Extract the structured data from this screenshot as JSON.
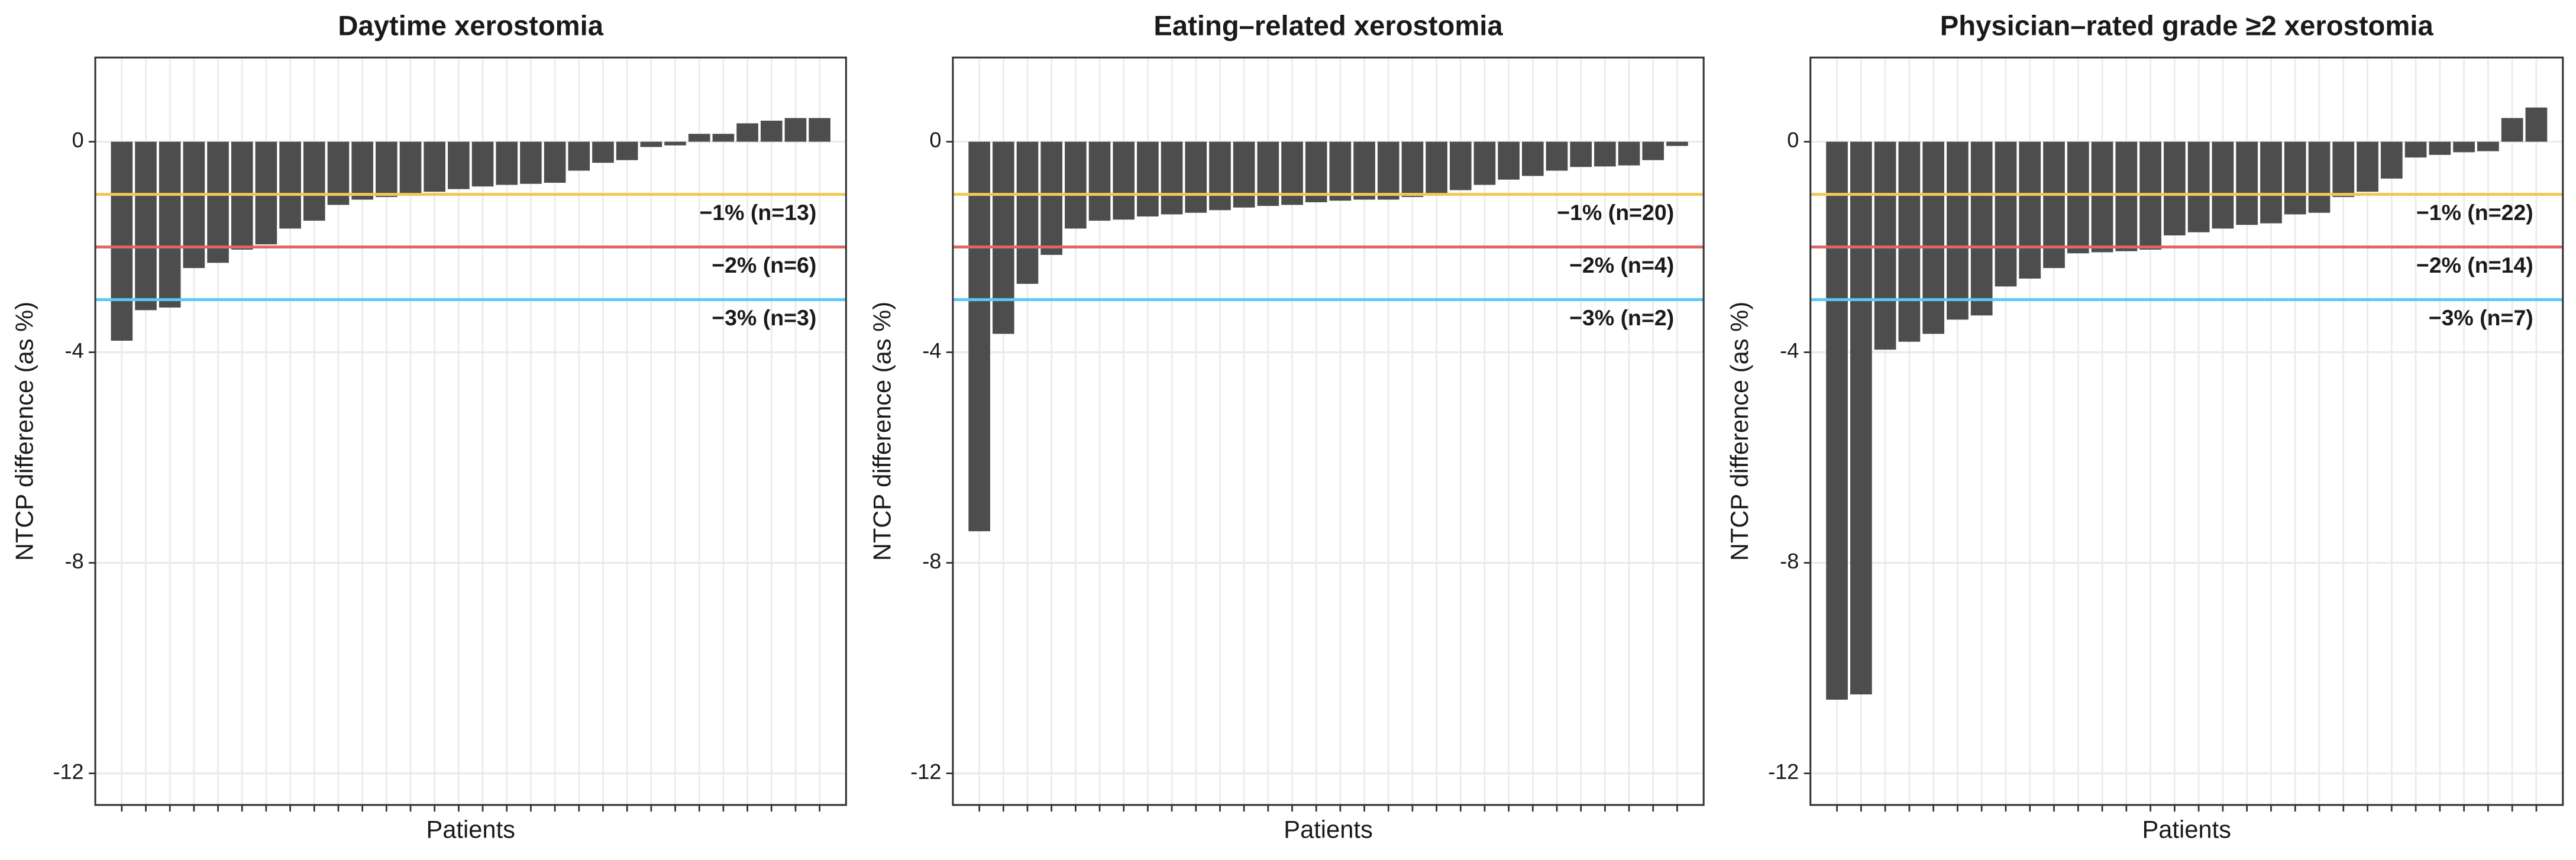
{
  "chart_data": [
    {
      "type": "bar",
      "title": "Daytime xerostomia",
      "xlabel": "Patients",
      "ylabel": "NTCP difference (as %)",
      "categories": [
        null,
        null,
        null,
        null,
        null,
        null,
        null,
        null,
        null,
        null,
        null,
        null,
        null,
        null,
        null,
        null,
        null,
        null,
        null,
        null,
        null,
        null,
        null,
        null,
        null,
        null,
        null,
        null,
        null,
        null
      ],
      "values": [
        -3.78,
        -3.2,
        -3.15,
        -2.4,
        -2.3,
        -2.05,
        -1.95,
        -1.65,
        -1.5,
        -1.2,
        -1.1,
        -1.05,
        -1.02,
        -0.95,
        -0.9,
        -0.85,
        -0.82,
        -0.8,
        -0.78,
        -0.55,
        -0.4,
        -0.35,
        -0.1,
        -0.07,
        0.15,
        0.15,
        0.35,
        0.4,
        0.45,
        0.45
      ],
      "color": "#4d4d4d",
      "ylim": [
        -12.6,
        1.6
      ],
      "yticks": [
        -12,
        -8,
        -4,
        0
      ],
      "grid": true,
      "hlines": [
        {
          "value": -1,
          "color": "#f0c85a",
          "label": "−1% (n=13)"
        },
        {
          "value": -2,
          "color": "#e06666",
          "label": "−2% (n=6)"
        },
        {
          "value": -3,
          "color": "#5bc8f5",
          "label": "−3% (n=3)"
        }
      ]
    },
    {
      "type": "bar",
      "title": "Eating–related xerostomia",
      "xlabel": "Patients",
      "ylabel": "NTCP difference (as %)",
      "categories": [
        null,
        null,
        null,
        null,
        null,
        null,
        null,
        null,
        null,
        null,
        null,
        null,
        null,
        null,
        null,
        null,
        null,
        null,
        null,
        null,
        null,
        null,
        null,
        null,
        null,
        null,
        null,
        null,
        null,
        null
      ],
      "values": [
        -7.4,
        -3.65,
        -2.7,
        -2.15,
        -1.65,
        -1.5,
        -1.48,
        -1.42,
        -1.38,
        -1.35,
        -1.3,
        -1.25,
        -1.22,
        -1.2,
        -1.15,
        -1.12,
        -1.1,
        -1.1,
        -1.05,
        -1.02,
        -0.92,
        -0.82,
        -0.72,
        -0.65,
        -0.55,
        -0.48,
        -0.47,
        -0.45,
        -0.35,
        -0.08
      ],
      "color": "#4d4d4d",
      "ylim": [
        -12.6,
        1.6
      ],
      "yticks": [
        -12,
        -8,
        -4,
        0
      ],
      "grid": true,
      "hlines": [
        {
          "value": -1,
          "color": "#f0c85a",
          "label": "−1% (n=20)"
        },
        {
          "value": -2,
          "color": "#e06666",
          "label": "−2% (n=4)"
        },
        {
          "value": -3,
          "color": "#5bc8f5",
          "label": "−3% (n=2)"
        }
      ]
    },
    {
      "type": "bar",
      "title": "Physician–rated grade ≥2 xerostomia",
      "xlabel": "Patients",
      "ylabel": "NTCP difference (as %)",
      "categories": [
        null,
        null,
        null,
        null,
        null,
        null,
        null,
        null,
        null,
        null,
        null,
        null,
        null,
        null,
        null,
        null,
        null,
        null,
        null,
        null,
        null,
        null,
        null,
        null,
        null,
        null,
        null,
        null,
        null,
        null
      ],
      "values": [
        -10.6,
        -10.5,
        -3.95,
        -3.8,
        -3.65,
        -3.38,
        -3.3,
        -2.75,
        -2.6,
        -2.4,
        -2.12,
        -2.1,
        -2.08,
        -2.05,
        -1.78,
        -1.72,
        -1.65,
        -1.58,
        -1.55,
        -1.38,
        -1.35,
        -1.05,
        -0.95,
        -0.7,
        -0.3,
        -0.25,
        -0.2,
        -0.18,
        0.45,
        0.65
      ],
      "color": "#4d4d4d",
      "ylim": [
        -12.6,
        1.6
      ],
      "yticks": [
        -12,
        -8,
        -4,
        0
      ],
      "grid": true,
      "hlines": [
        {
          "value": -1,
          "color": "#f0c85a",
          "label": "−1% (n=22)"
        },
        {
          "value": -2,
          "color": "#e06666",
          "label": "−2% (n=14)"
        },
        {
          "value": -3,
          "color": "#5bc8f5",
          "label": "−3% (n=7)"
        }
      ]
    }
  ]
}
